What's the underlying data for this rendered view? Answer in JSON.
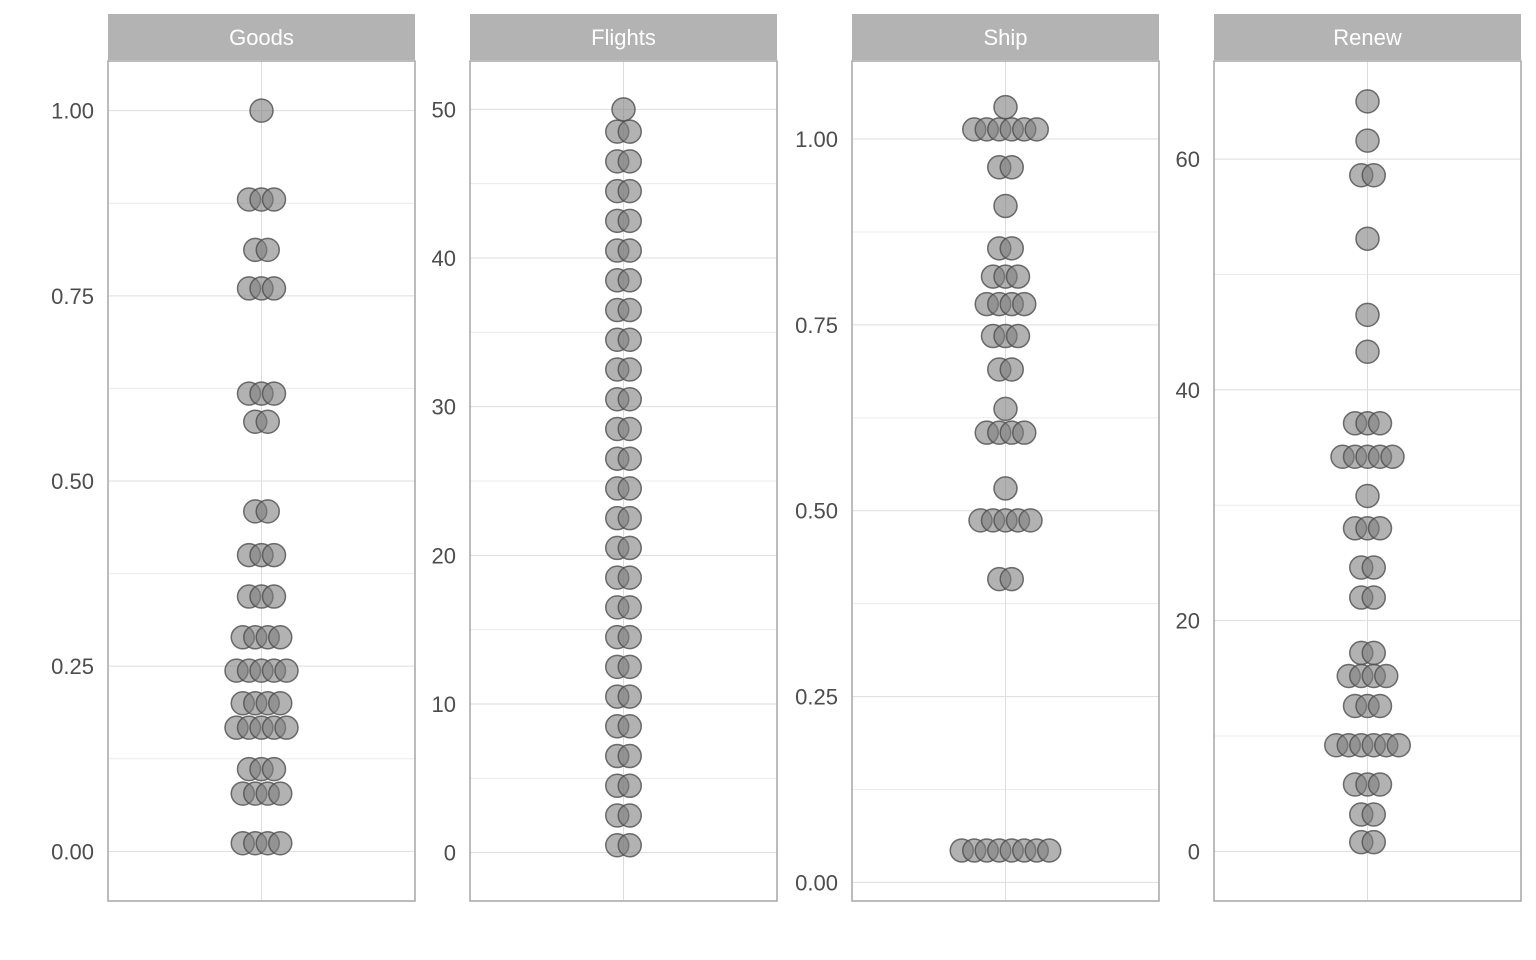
{
  "colors": {
    "background": "#ffffff",
    "strip": "#b3b3b3",
    "panel_border": "#a6a6a6",
    "grid_major": "#dddddd",
    "grid_minor": "#ebebeb",
    "dot_fill": "#7f7f7f",
    "dot_stroke": "#4d4d4d",
    "tick_text": "#4d4d4d",
    "strip_text": "#ffffff"
  },
  "chart_data": {
    "type": "scatter",
    "subtype": "dotplot-facets",
    "grid": true,
    "panels": [
      {
        "name": "Goods",
        "ylim": [
          -0.067,
          1.067
        ],
        "yticks": [
          0,
          0.25,
          0.5,
          0.75,
          1.0
        ],
        "ytick_labels": [
          "0.00",
          "0.25",
          "0.50",
          "0.75",
          "1.00"
        ],
        "bins": [
          {
            "y": 0.011,
            "count": 4
          },
          {
            "y": 0.078,
            "count": 4
          },
          {
            "y": 0.111,
            "count": 3
          },
          {
            "y": 0.167,
            "count": 5
          },
          {
            "y": 0.2,
            "count": 4
          },
          {
            "y": 0.244,
            "count": 5
          },
          {
            "y": 0.289,
            "count": 4
          },
          {
            "y": 0.344,
            "count": 3
          },
          {
            "y": 0.4,
            "count": 3
          },
          {
            "y": 0.459,
            "count": 2
          },
          {
            "y": 0.58,
            "count": 2
          },
          {
            "y": 0.618,
            "count": 3
          },
          {
            "y": 0.76,
            "count": 3
          },
          {
            "y": 0.812,
            "count": 2
          },
          {
            "y": 0.88,
            "count": 3
          },
          {
            "y": 1.0,
            "count": 1
          }
        ]
      },
      {
        "name": "Flights",
        "ylim": [
          -3.25,
          53.25
        ],
        "yticks": [
          0,
          10,
          20,
          30,
          40,
          50
        ],
        "ytick_labels": [
          "0",
          "10",
          "20",
          "30",
          "40",
          "50"
        ],
        "bins": [
          {
            "y": 0.5,
            "count": 2
          },
          {
            "y": 2.5,
            "count": 2
          },
          {
            "y": 4.5,
            "count": 2
          },
          {
            "y": 6.5,
            "count": 2
          },
          {
            "y": 8.5,
            "count": 2
          },
          {
            "y": 10.5,
            "count": 2
          },
          {
            "y": 12.5,
            "count": 2
          },
          {
            "y": 14.5,
            "count": 2
          },
          {
            "y": 16.5,
            "count": 2
          },
          {
            "y": 18.5,
            "count": 2
          },
          {
            "y": 20.5,
            "count": 2
          },
          {
            "y": 22.5,
            "count": 2
          },
          {
            "y": 24.5,
            "count": 2
          },
          {
            "y": 26.5,
            "count": 2
          },
          {
            "y": 28.5,
            "count": 2
          },
          {
            "y": 30.5,
            "count": 2
          },
          {
            "y": 32.5,
            "count": 2
          },
          {
            "y": 34.5,
            "count": 2
          },
          {
            "y": 36.5,
            "count": 2
          },
          {
            "y": 38.5,
            "count": 2
          },
          {
            "y": 40.5,
            "count": 2
          },
          {
            "y": 42.5,
            "count": 2
          },
          {
            "y": 44.5,
            "count": 2
          },
          {
            "y": 46.5,
            "count": 2
          },
          {
            "y": 48.5,
            "count": 2
          },
          {
            "y": 50.0,
            "count": 1
          }
        ]
      },
      {
        "name": "Ship",
        "ylim": [
          -0.025,
          1.105
        ],
        "yticks": [
          0,
          0.25,
          0.5,
          0.75,
          1.0
        ],
        "ytick_labels": [
          "0.00",
          "0.25",
          "0.50",
          "0.75",
          "1.00"
        ],
        "bins": [
          {
            "y": 0.043,
            "count": 8
          },
          {
            "y": 0.408,
            "count": 2
          },
          {
            "y": 0.487,
            "count": 5
          },
          {
            "y": 0.53,
            "count": 1
          },
          {
            "y": 0.605,
            "count": 4
          },
          {
            "y": 0.637,
            "count": 1
          },
          {
            "y": 0.69,
            "count": 2
          },
          {
            "y": 0.735,
            "count": 3
          },
          {
            "y": 0.778,
            "count": 4
          },
          {
            "y": 0.815,
            "count": 3
          },
          {
            "y": 0.853,
            "count": 2
          },
          {
            "y": 0.91,
            "count": 1
          },
          {
            "y": 0.962,
            "count": 2
          },
          {
            "y": 1.013,
            "count": 6
          },
          {
            "y": 1.043,
            "count": 1
          }
        ]
      },
      {
        "name": "Renew",
        "ylim": [
          -4.3,
          68.5
        ],
        "yticks": [
          0,
          20,
          40,
          60
        ],
        "ytick_labels": [
          "0",
          "20",
          "40",
          "60"
        ],
        "bins": [
          {
            "y": 0.8,
            "count": 2
          },
          {
            "y": 3.2,
            "count": 2
          },
          {
            "y": 5.8,
            "count": 3
          },
          {
            "y": 9.2,
            "count": 6
          },
          {
            "y": 12.6,
            "count": 3
          },
          {
            "y": 15.2,
            "count": 4
          },
          {
            "y": 17.2,
            "count": 2
          },
          {
            "y": 22.0,
            "count": 2
          },
          {
            "y": 24.6,
            "count": 2
          },
          {
            "y": 28.0,
            "count": 3
          },
          {
            "y": 30.8,
            "count": 1
          },
          {
            "y": 34.2,
            "count": 5
          },
          {
            "y": 37.1,
            "count": 3
          },
          {
            "y": 43.3,
            "count": 1
          },
          {
            "y": 46.5,
            "count": 1
          },
          {
            "y": 53.1,
            "count": 1
          },
          {
            "y": 58.6,
            "count": 2
          },
          {
            "y": 61.6,
            "count": 1
          },
          {
            "y": 65.0,
            "count": 1
          }
        ]
      }
    ]
  }
}
